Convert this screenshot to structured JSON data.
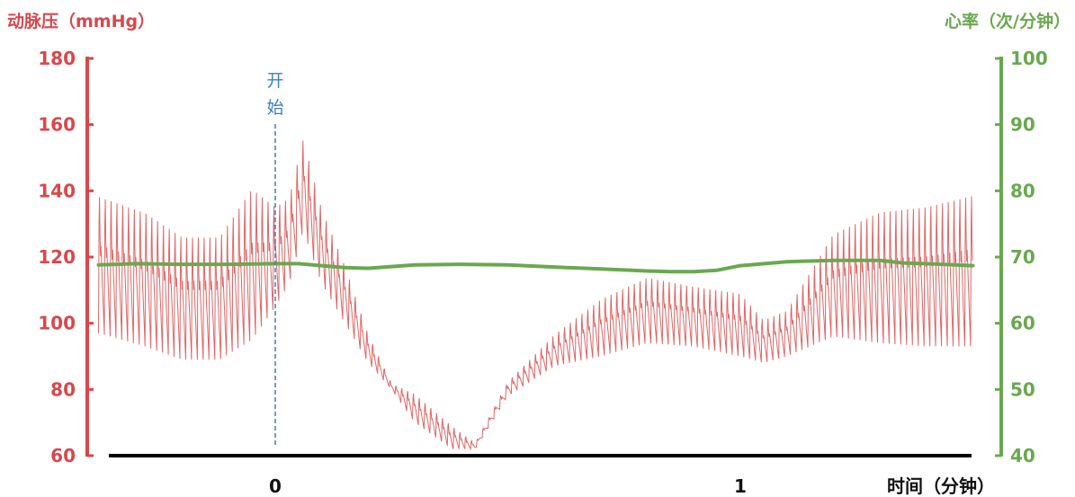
{
  "chart_data": {
    "type": "line",
    "left_axis": {
      "label": "动脉压（mmHg）",
      "ticks": [
        "180",
        "160",
        "140",
        "120",
        "100",
        "80",
        "60"
      ],
      "range": [
        60,
        180
      ],
      "color": "#d9474b"
    },
    "right_axis": {
      "label": "心率（次/分钟）",
      "ticks": [
        "100",
        "90",
        "80",
        "70",
        "60",
        "50",
        "40"
      ],
      "range": [
        40,
        100
      ],
      "color": "#6aa84f"
    },
    "x_axis": {
      "label": "时间（分钟）",
      "ticks": [
        {
          "value": 0,
          "label": "0"
        },
        {
          "value": 1,
          "label": "1"
        }
      ],
      "range": [
        -0.38,
        1.5
      ]
    },
    "marker": {
      "x": 0,
      "text": [
        "开",
        "始"
      ],
      "color": "#3b7fc4"
    },
    "series": [
      {
        "kind": "heart_rate",
        "axis": "right",
        "color": "#6aa84f",
        "x": [
          -0.38,
          -0.3,
          -0.2,
          -0.1,
          0,
          0.05,
          0.1,
          0.15,
          0.2,
          0.3,
          0.4,
          0.5,
          0.6,
          0.7,
          0.8,
          0.85,
          0.9,
          0.95,
          1.0,
          1.1,
          1.2,
          1.3,
          1.35,
          1.4,
          1.5
        ],
        "y": [
          68.8,
          69.0,
          68.9,
          68.9,
          69.0,
          69.0,
          68.7,
          68.4,
          68.3,
          68.8,
          68.9,
          68.8,
          68.5,
          68.2,
          67.9,
          67.8,
          67.8,
          68.0,
          68.7,
          69.3,
          69.5,
          69.5,
          69.1,
          69.0,
          68.7
        ]
      },
      {
        "kind": "arterial_pressure",
        "axis": "left",
        "color": "#e06666",
        "beat_period_min": 0.0125,
        "x": [
          -0.38,
          -0.28,
          -0.2,
          -0.12,
          -0.05,
          0,
          0.03,
          0.06,
          0.1,
          0.15,
          0.2,
          0.25,
          0.3,
          0.38,
          0.43,
          0.5,
          0.6,
          0.7,
          0.8,
          0.9,
          1.0,
          1.05,
          1.1,
          1.2,
          1.3,
          1.4,
          1.5
        ],
        "systolic": [
          145,
          140,
          132,
          132,
          148,
          140,
          142,
          160,
          138,
          120,
          98,
          82,
          80,
          70,
          64,
          83,
          98,
          110,
          117,
          114,
          112,
          103,
          106,
          132,
          140,
          142,
          146
        ],
        "diastolic": [
          97,
          93,
          89,
          89,
          95,
          105,
          112,
          128,
          112,
          100,
          88,
          80,
          70,
          62,
          62,
          78,
          87,
          90,
          94,
          93,
          90,
          88,
          90,
          96,
          94,
          93,
          93
        ]
      }
    ],
    "baseline": {
      "color": "#000000"
    }
  }
}
